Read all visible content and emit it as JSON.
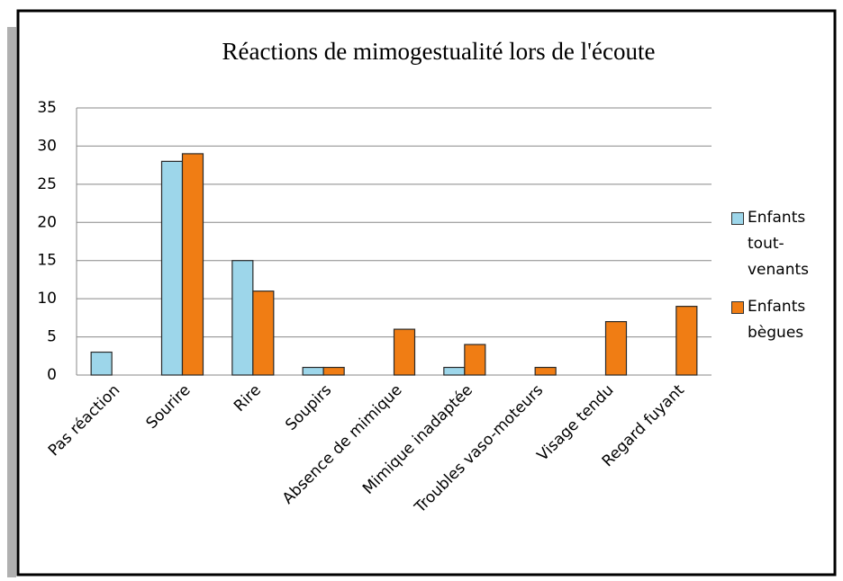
{
  "chart_data": {
    "type": "bar",
    "title": "Réactions de mimogestualité lors de l'écoute",
    "categories": [
      "Pas réaction",
      "Sourire",
      "Rire",
      "Soupirs",
      "Absence de mimique",
      "Mimique inadaptée",
      "Troubles vaso-moteurs",
      "Visage tendu",
      "Regard fuyant"
    ],
    "series": [
      {
        "name": "Enfants tout-venants",
        "color": "#9dd6ea",
        "values": [
          3,
          28,
          15,
          1,
          0,
          1,
          0,
          0,
          0
        ]
      },
      {
        "name": "Enfants bègues",
        "color": "#f07d14",
        "values": [
          0,
          29,
          11,
          1,
          6,
          4,
          1,
          7,
          9
        ]
      }
    ],
    "ylim": [
      0,
      35
    ],
    "yticks": [
      0,
      5,
      10,
      15,
      20,
      25,
      30,
      35
    ],
    "grid": true,
    "legend": "right"
  }
}
